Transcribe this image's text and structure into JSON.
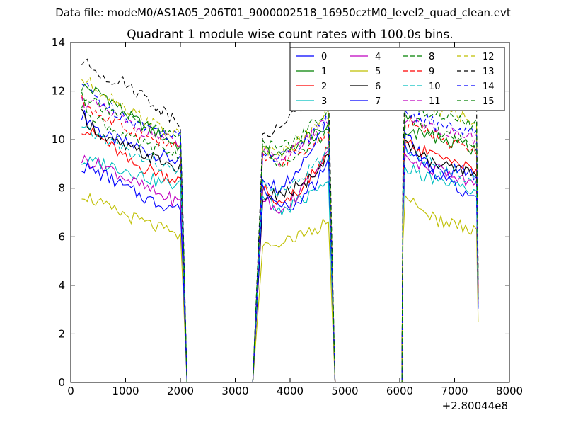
{
  "header": {
    "data_file": "Data file: modeM0/AS1A05_206T01_9000002518_16950cztM0_level2_quad_clean.evt"
  },
  "chart_data": {
    "type": "line",
    "title": "Quadrant 1 module wise count rates with 100.0s bins.",
    "xlabel": "",
    "ylabel": "",
    "xlim": [
      0,
      8000
    ],
    "ylim": [
      0,
      14
    ],
    "x_offset_label": "+2.80044e8",
    "x_ticks": [
      0,
      1000,
      2000,
      3000,
      4000,
      5000,
      6000,
      7000,
      8000
    ],
    "y_ticks": [
      0,
      2,
      4,
      6,
      8,
      10,
      12,
      14
    ],
    "legend_position": "top-right",
    "gaps": [
      [
        2120,
        3320
      ],
      [
        4820,
        6040
      ]
    ],
    "series": [
      {
        "name": "0",
        "color": "#0000ff",
        "dash": "solid",
        "s1": [
          11.1,
          10.1,
          9.8,
          9.4,
          9.1
        ],
        "s2": [
          8.5,
          8.0,
          8.6,
          9.8,
          10.8
        ],
        "s3": [
          10.2,
          9.2,
          8.6,
          8.8,
          8.5
        ]
      },
      {
        "name": "1",
        "color": "#008000",
        "dash": "solid",
        "s1": [
          12.2,
          11.8,
          10.9,
          10.3,
          9.7
        ],
        "s2": [
          9.6,
          9.3,
          9.8,
          10.2,
          10.6
        ],
        "s3": [
          10.4,
          10.2,
          10.0,
          9.9,
          9.5
        ]
      },
      {
        "name": "2",
        "color": "#ff0000",
        "dash": "solid",
        "s1": [
          10.5,
          9.9,
          9.0,
          8.7,
          8.3
        ],
        "s2": [
          8.0,
          7.5,
          7.8,
          8.6,
          9.6
        ],
        "s3": [
          9.9,
          9.5,
          9.3,
          9.1,
          8.8
        ]
      },
      {
        "name": "3",
        "color": "#00bfbf",
        "dash": "solid",
        "s1": [
          9.1,
          9.0,
          8.7,
          8.3,
          8.1
        ],
        "s2": [
          7.7,
          7.0,
          7.4,
          7.8,
          8.4
        ],
        "s3": [
          8.9,
          8.5,
          8.2,
          8.0,
          7.8
        ]
      },
      {
        "name": "4",
        "color": "#bf00bf",
        "dash": "solid",
        "s1": [
          9.2,
          8.9,
          8.3,
          7.8,
          7.4
        ],
        "s2": [
          7.5,
          7.2,
          7.6,
          8.4,
          9.5
        ],
        "s3": [
          9.3,
          8.9,
          8.7,
          8.4,
          8.1
        ]
      },
      {
        "name": "5",
        "color": "#bfbf00",
        "dash": "solid",
        "s1": [
          7.8,
          7.2,
          6.8,
          6.4,
          6.0
        ],
        "s2": [
          5.7,
          5.8,
          6.0,
          6.2,
          6.6
        ],
        "s3": [
          7.8,
          7.0,
          6.6,
          6.5,
          6.2
        ]
      },
      {
        "name": "6",
        "color": "#000000",
        "dash": "solid",
        "s1": [
          11.0,
          10.0,
          9.6,
          9.2,
          8.8
        ],
        "s2": [
          7.6,
          7.8,
          8.0,
          8.4,
          9.2
        ],
        "s3": [
          9.9,
          9.3,
          8.9,
          8.7,
          8.6
        ]
      },
      {
        "name": "7",
        "color": "#0000ff",
        "dash": "solid",
        "s1": [
          8.9,
          8.5,
          7.9,
          7.4,
          7.2
        ],
        "s2": [
          7.9,
          7.2,
          7.4,
          8.0,
          9.2
        ],
        "s3": [
          9.8,
          9.0,
          8.4,
          8.0,
          7.6
        ]
      },
      {
        "name": "8",
        "color": "#008000",
        "dash": "dashed",
        "s1": [
          11.4,
          10.6,
          10.0,
          9.6,
          9.4
        ],
        "s2": [
          9.5,
          9.0,
          9.2,
          9.8,
          10.4
        ],
        "s3": [
          11.0,
          10.6,
          10.2,
          10.0,
          9.8
        ]
      },
      {
        "name": "9",
        "color": "#ff0000",
        "dash": "dashed",
        "s1": [
          11.6,
          10.8,
          10.4,
          10.0,
          9.6
        ],
        "s2": [
          9.2,
          9.0,
          9.4,
          9.8,
          10.4
        ],
        "s3": [
          10.8,
          10.4,
          10.0,
          9.8,
          9.4
        ]
      },
      {
        "name": "10",
        "color": "#00bfbf",
        "dash": "dashed",
        "s1": [
          10.4,
          10.0,
          9.4,
          9.0,
          8.6
        ],
        "s2": [
          8.4,
          7.8,
          8.2,
          8.8,
          9.6
        ],
        "s3": [
          9.6,
          9.2,
          8.8,
          8.6,
          8.4
        ]
      },
      {
        "name": "11",
        "color": "#bf00bf",
        "dash": "dashed",
        "s1": [
          11.6,
          11.2,
          10.6,
          10.2,
          9.8
        ],
        "s2": [
          9.5,
          9.2,
          9.6,
          10.2,
          10.8
        ],
        "s3": [
          10.8,
          10.6,
          10.4,
          10.2,
          10.0
        ]
      },
      {
        "name": "12",
        "color": "#bfbf00",
        "dash": "dashed",
        "s1": [
          12.5,
          11.9,
          11.2,
          10.6,
          10.1
        ],
        "s2": [
          9.6,
          9.4,
          9.9,
          10.4,
          11.2
        ],
        "s3": [
          11.8,
          11.4,
          11.2,
          11.0,
          10.8
        ]
      },
      {
        "name": "13",
        "color": "#000000",
        "dash": "dashed",
        "s1": [
          13.2,
          12.6,
          12.2,
          11.4,
          10.7
        ],
        "s2": [
          10.2,
          10.4,
          11.2,
          11.6,
          12.2
        ],
        "s3": [
          12.4,
          12.2,
          12.0,
          11.8,
          11.6
        ]
      },
      {
        "name": "14",
        "color": "#0000ff",
        "dash": "dashed",
        "s1": [
          12.3,
          11.4,
          10.8,
          10.4,
          10.1
        ],
        "s2": [
          9.4,
          9.2,
          9.6,
          10.2,
          10.8
        ],
        "s3": [
          11.2,
          10.8,
          10.6,
          10.4,
          10.2
        ]
      },
      {
        "name": "15",
        "color": "#008000",
        "dash": "dashed",
        "s1": [
          11.9,
          11.3,
          10.8,
          10.4,
          10.1
        ],
        "s2": [
          9.9,
          9.6,
          10.0,
          10.6,
          11.2
        ],
        "s3": [
          11.6,
          11.2,
          11.0,
          10.8,
          10.6
        ]
      }
    ],
    "segments": [
      {
        "start": 200,
        "end": 2000,
        "drop_x": 2050
      },
      {
        "start": 3500,
        "end": 4700,
        "drop_x": 4750
      },
      {
        "start": 6100,
        "end": 7400,
        "drop_x": 7430
      }
    ]
  }
}
